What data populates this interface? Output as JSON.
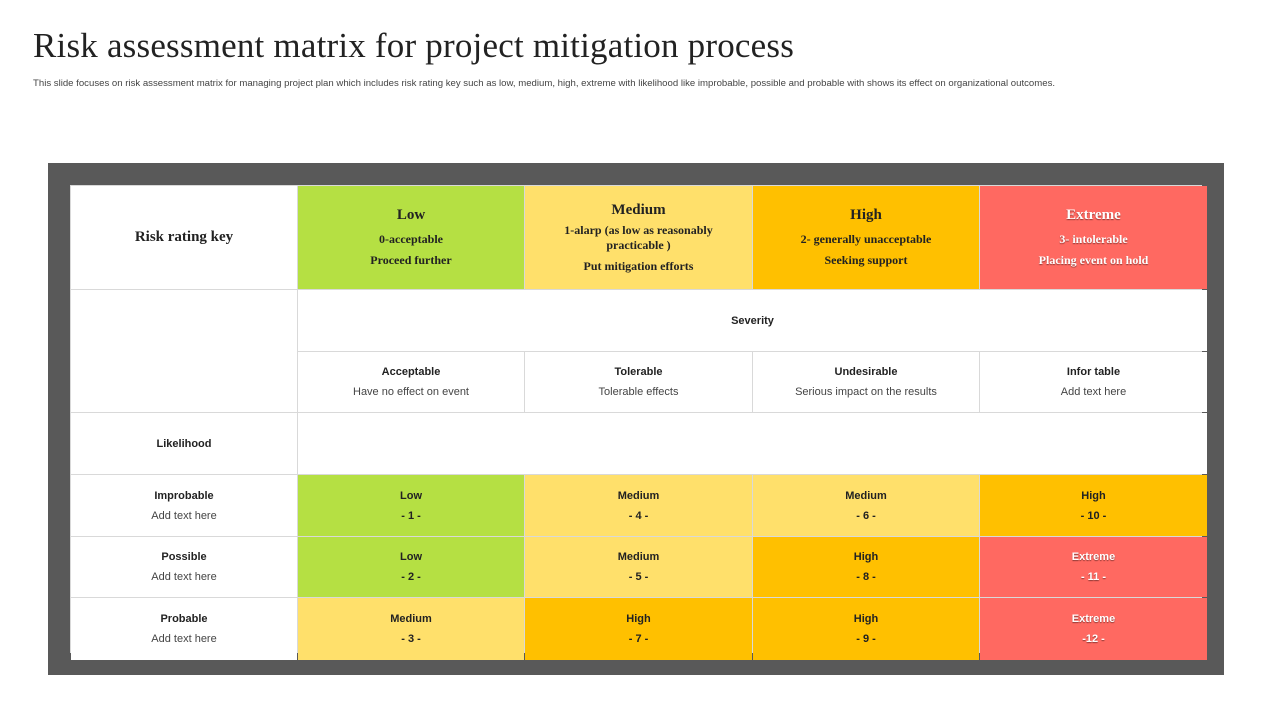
{
  "header": {
    "title": "Risk assessment matrix for project mitigation process",
    "subtitle": "This slide focuses on risk assessment matrix for managing project plan which includes risk rating key such as low, medium, high, extreme with likelihood like improbable, possible and probable with shows its effect on organizational outcomes."
  },
  "rating_key": {
    "label": "Risk rating key",
    "items": [
      {
        "name": "Low",
        "line1": "0-acceptable",
        "line2": "Proceed further",
        "color": "#b5e043"
      },
      {
        "name": "Medium",
        "line1": "1-alarp (as low as reasonably practicable )",
        "line2": "Put mitigation efforts",
        "color": "#ffe06b"
      },
      {
        "name": "High",
        "line1": "2- generally unacceptable",
        "line2": "Seeking support",
        "color": "#ffc000"
      },
      {
        "name": "Extreme",
        "line1": "3- intolerable",
        "line2": "Placing event on hold",
        "color": "#ff6961"
      }
    ]
  },
  "severity": {
    "label": "Severity",
    "columns": [
      {
        "title": "Acceptable",
        "desc": "Have no effect on event"
      },
      {
        "title": "Tolerable",
        "desc": "Tolerable effects"
      },
      {
        "title": "Undesirable",
        "desc": "Serious impact on the results"
      },
      {
        "title": "Infor table",
        "desc": "Add text here"
      }
    ]
  },
  "likelihood": {
    "label": "Likelihood",
    "rows": [
      {
        "title": "Improbable",
        "desc": "Add text here",
        "cells": [
          {
            "level": "Low",
            "score": "- 1 -"
          },
          {
            "level": "Medium",
            "score": "- 4 -"
          },
          {
            "level": "Medium",
            "score": "- 6 -"
          },
          {
            "level": "High",
            "score": "- 10 -"
          }
        ]
      },
      {
        "title": "Possible",
        "desc": "Add text here",
        "cells": [
          {
            "level": "Low",
            "score": "- 2 -"
          },
          {
            "level": "Medium",
            "score": "- 5 -"
          },
          {
            "level": "High",
            "score": "- 8 -"
          },
          {
            "level": "Extreme",
            "score": "- 11 -"
          }
        ]
      },
      {
        "title": "Probable",
        "desc": "Add text here",
        "cells": [
          {
            "level": "Medium",
            "score": "- 3 -"
          },
          {
            "level": "High",
            "score": "- 7 -"
          },
          {
            "level": "High",
            "score": "- 9 -"
          },
          {
            "level": "Extreme",
            "score": "-12 -"
          }
        ]
      }
    ]
  }
}
